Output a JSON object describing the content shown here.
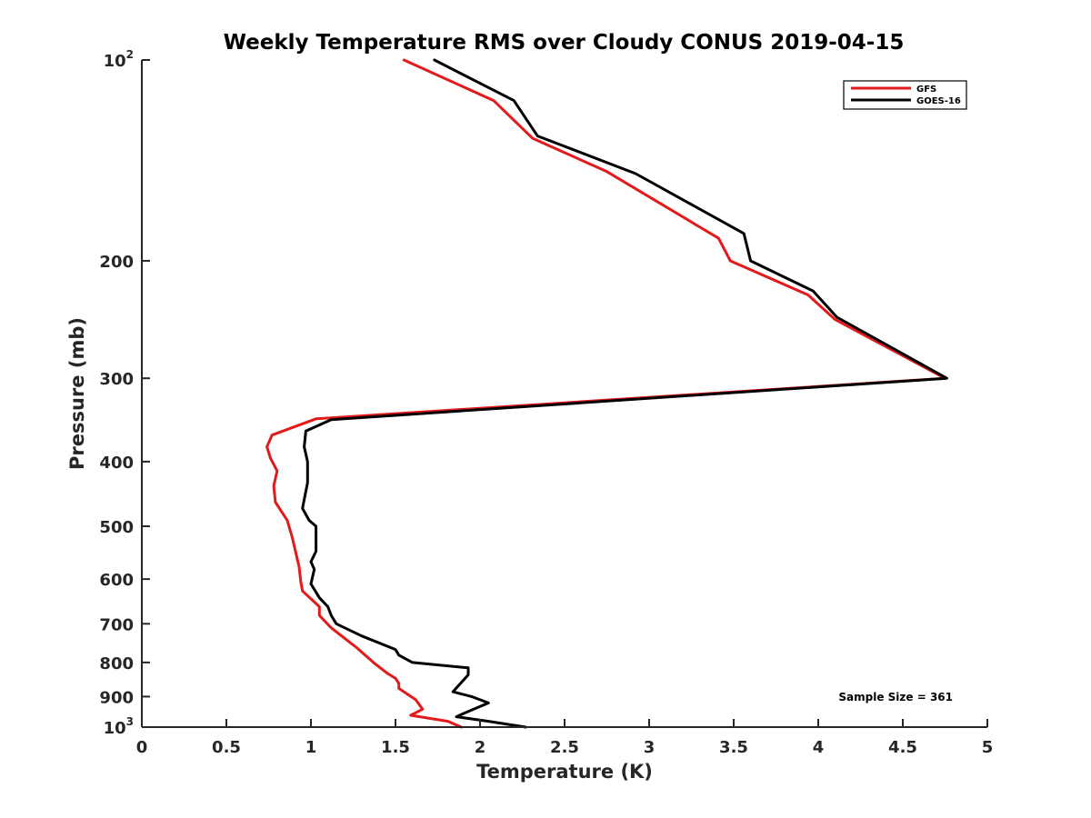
{
  "chart_data": {
    "type": "line",
    "title": "Weekly Temperature RMS over Cloudy CONUS 2019-04-15",
    "xlabel": "Temperature (K)",
    "ylabel": "Pressure (mb)",
    "xlim": [
      0,
      5
    ],
    "ylim": [
      100,
      1000
    ],
    "y_scale": "log",
    "y_reversed": true,
    "x_ticks": [
      "0",
      "0.5",
      "1",
      "1.5",
      "2",
      "2.5",
      "3",
      "3.5",
      "4",
      "4.5",
      "5"
    ],
    "x_tick_values": [
      0,
      0.5,
      1,
      1.5,
      2,
      2.5,
      3,
      3.5,
      4,
      4.5,
      5
    ],
    "y_tick_values": [
      100,
      200,
      300,
      400,
      500,
      600,
      700,
      800,
      900,
      1000
    ],
    "y_tick_labels": [
      {
        "base": "10",
        "exp": "2"
      },
      {
        "base": "200",
        "exp": ""
      },
      {
        "base": "300",
        "exp": ""
      },
      {
        "base": "400",
        "exp": ""
      },
      {
        "base": "500",
        "exp": ""
      },
      {
        "base": "600",
        "exp": ""
      },
      {
        "base": "700",
        "exp": ""
      },
      {
        "base": "800",
        "exp": ""
      },
      {
        "base": "900",
        "exp": ""
      },
      {
        "base": "10",
        "exp": "3"
      }
    ],
    "grid": false,
    "legend_position": "top-right",
    "series": [
      {
        "name": "GFS",
        "color": "#e31a1c",
        "points": [
          [
            1.55,
            100
          ],
          [
            2.08,
            115
          ],
          [
            2.31,
            131
          ],
          [
            2.75,
            147
          ],
          [
            3.41,
            185
          ],
          [
            3.48,
            200
          ],
          [
            3.94,
            225
          ],
          [
            4.1,
            245
          ],
          [
            4.75,
            300
          ],
          [
            1.03,
            345
          ],
          [
            0.77,
            365
          ],
          [
            0.74,
            380
          ],
          [
            0.76,
            395
          ],
          [
            0.8,
            413
          ],
          [
            0.78,
            435
          ],
          [
            0.79,
            460
          ],
          [
            0.86,
            490
          ],
          [
            0.89,
            520
          ],
          [
            0.93,
            575
          ],
          [
            0.94,
            605
          ],
          [
            0.95,
            625
          ],
          [
            1.05,
            660
          ],
          [
            1.05,
            680
          ],
          [
            1.12,
            710
          ],
          [
            1.27,
            760
          ],
          [
            1.37,
            800
          ],
          [
            1.45,
            830
          ],
          [
            1.5,
            845
          ],
          [
            1.52,
            860
          ],
          [
            1.52,
            875
          ],
          [
            1.62,
            910
          ],
          [
            1.66,
            940
          ],
          [
            1.59,
            960
          ],
          [
            1.81,
            980
          ],
          [
            1.89,
            1000
          ]
        ]
      },
      {
        "name": "GOES-16",
        "color": "#000000",
        "points": [
          [
            1.73,
            100
          ],
          [
            2.2,
            115
          ],
          [
            2.34,
            130
          ],
          [
            2.92,
            148
          ],
          [
            3.56,
            182
          ],
          [
            3.6,
            200
          ],
          [
            3.97,
            222
          ],
          [
            4.11,
            243
          ],
          [
            4.76,
            300
          ],
          [
            1.12,
            346
          ],
          [
            0.97,
            360
          ],
          [
            0.96,
            380
          ],
          [
            0.98,
            400
          ],
          [
            0.98,
            430
          ],
          [
            0.95,
            470
          ],
          [
            0.99,
            490
          ],
          [
            1.03,
            500
          ],
          [
            1.03,
            545
          ],
          [
            1.0,
            565
          ],
          [
            1.02,
            580
          ],
          [
            1.0,
            610
          ],
          [
            1.05,
            640
          ],
          [
            1.1,
            660
          ],
          [
            1.12,
            680
          ],
          [
            1.15,
            700
          ],
          [
            1.3,
            730
          ],
          [
            1.5,
            765
          ],
          [
            1.52,
            780
          ],
          [
            1.6,
            800
          ],
          [
            1.93,
            815
          ],
          [
            1.93,
            835
          ],
          [
            1.84,
            885
          ],
          [
            1.95,
            900
          ],
          [
            2.05,
            920
          ],
          [
            1.92,
            950
          ],
          [
            1.86,
            965
          ],
          [
            2.05,
            980
          ],
          [
            2.27,
            1000
          ]
        ]
      }
    ],
    "annotation": "Sample Size = 361"
  }
}
